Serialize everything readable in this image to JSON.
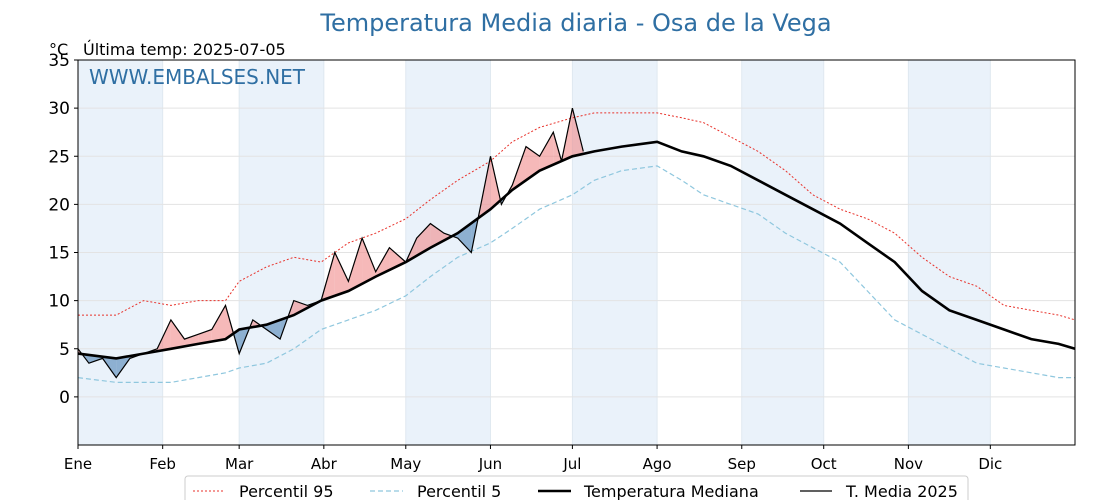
{
  "title": "Temperatura Media diaria - Osa de la Vega",
  "unit_label": "°C",
  "last_temp": "Última temp: 2025-07-05",
  "watermark": "WWW.EMBALSES.NET",
  "colors": {
    "title": "#2f6fa3",
    "p95": "#e8322b",
    "p5": "#8fc7de",
    "median": "#000000",
    "current": "#000000",
    "above_fill": "#f08a8a",
    "below_fill": "#4f83b5",
    "month_band": "#eaf2fa"
  },
  "chart_data": {
    "type": "line",
    "title": "Temperatura Media diaria - Osa de la Vega",
    "ylabel": "°C",
    "ylim": [
      -5,
      35
    ],
    "yticks": [
      0,
      5,
      10,
      15,
      20,
      25,
      30,
      35
    ],
    "xlim": [
      1,
      366
    ],
    "months": [
      "Ene",
      "Feb",
      "Mar",
      "Abr",
      "May",
      "Jun",
      "Jul",
      "Ago",
      "Sep",
      "Oct",
      "Nov",
      "Dic"
    ],
    "month_start_day": [
      1,
      32,
      60,
      91,
      121,
      152,
      182,
      213,
      244,
      274,
      305,
      335
    ],
    "grid": true,
    "legend_position": "bottom",
    "series": [
      {
        "name": "Percentil 95",
        "style": "dotted",
        "x": [
          1,
          15,
          25,
          35,
          45,
          55,
          60,
          70,
          80,
          90,
          100,
          110,
          121,
          130,
          140,
          152,
          160,
          170,
          182,
          190,
          200,
          213,
          222,
          230,
          240,
          250,
          260,
          270,
          280,
          290,
          300,
          310,
          320,
          330,
          340,
          350,
          360,
          366
        ],
        "y": [
          8.5,
          8.5,
          10,
          9.5,
          10,
          10,
          12,
          13.5,
          14.5,
          14,
          16,
          17,
          18.5,
          20.5,
          22.5,
          24.5,
          26.5,
          28,
          29,
          29.5,
          29.5,
          29.5,
          29,
          28.5,
          27,
          25.5,
          23.5,
          21,
          19.5,
          18.5,
          17,
          14.5,
          12.5,
          11.5,
          9.5,
          9,
          8.5,
          8
        ]
      },
      {
        "name": "Percentil 5",
        "style": "dashed",
        "x": [
          1,
          15,
          25,
          35,
          45,
          55,
          60,
          70,
          80,
          90,
          100,
          110,
          121,
          130,
          140,
          152,
          160,
          170,
          182,
          190,
          200,
          213,
          222,
          230,
          240,
          250,
          260,
          270,
          280,
          290,
          300,
          310,
          320,
          330,
          340,
          350,
          360,
          366
        ],
        "y": [
          2,
          1.5,
          1.5,
          1.5,
          2,
          2.5,
          3,
          3.5,
          5,
          7,
          8,
          9,
          10.5,
          12.5,
          14.5,
          16,
          17.5,
          19.5,
          21,
          22.5,
          23.5,
          24,
          22.5,
          21,
          20,
          19,
          17,
          15.5,
          14,
          11,
          8,
          6.5,
          5,
          3.5,
          3,
          2.5,
          2,
          2
        ]
      },
      {
        "name": "Temperatura Mediana",
        "style": "solid-thick",
        "x": [
          1,
          15,
          25,
          35,
          45,
          55,
          60,
          70,
          80,
          90,
          100,
          110,
          121,
          130,
          140,
          152,
          160,
          170,
          182,
          190,
          200,
          213,
          222,
          230,
          240,
          250,
          260,
          270,
          280,
          290,
          300,
          310,
          320,
          330,
          340,
          350,
          360,
          366
        ],
        "y": [
          4.5,
          4,
          4.5,
          5,
          5.5,
          6,
          7,
          7.5,
          8.5,
          10,
          11,
          12.5,
          14,
          15.5,
          17,
          19.5,
          21.5,
          23.5,
          25,
          25.5,
          26,
          26.5,
          25.5,
          25,
          24,
          22.5,
          21,
          19.5,
          18,
          16,
          14,
          11,
          9,
          8,
          7,
          6,
          5.5,
          5
        ]
      },
      {
        "name": "T. Media 2025",
        "style": "solid-thin",
        "x": [
          1,
          5,
          10,
          15,
          20,
          25,
          30,
          35,
          40,
          45,
          50,
          55,
          60,
          65,
          70,
          75,
          80,
          85,
          90,
          95,
          100,
          105,
          110,
          115,
          121,
          125,
          130,
          135,
          140,
          145,
          152,
          156,
          160,
          165,
          170,
          175,
          178,
          182,
          186
        ],
        "y": [
          5,
          3.5,
          4,
          2,
          4,
          4.5,
          5,
          8,
          6,
          6.5,
          7,
          9.5,
          4.5,
          8,
          7,
          6,
          10,
          9.5,
          10,
          15,
          12,
          16.5,
          13,
          15.5,
          14,
          16.5,
          18,
          17,
          16.5,
          15,
          25,
          20,
          22,
          26,
          25,
          27.5,
          24.5,
          30,
          25.5
        ]
      }
    ]
  },
  "legend": {
    "p95": "Percentil 95",
    "p5": "Percentil 5",
    "median": "Temperatura Mediana",
    "current": "T. Media 2025"
  }
}
